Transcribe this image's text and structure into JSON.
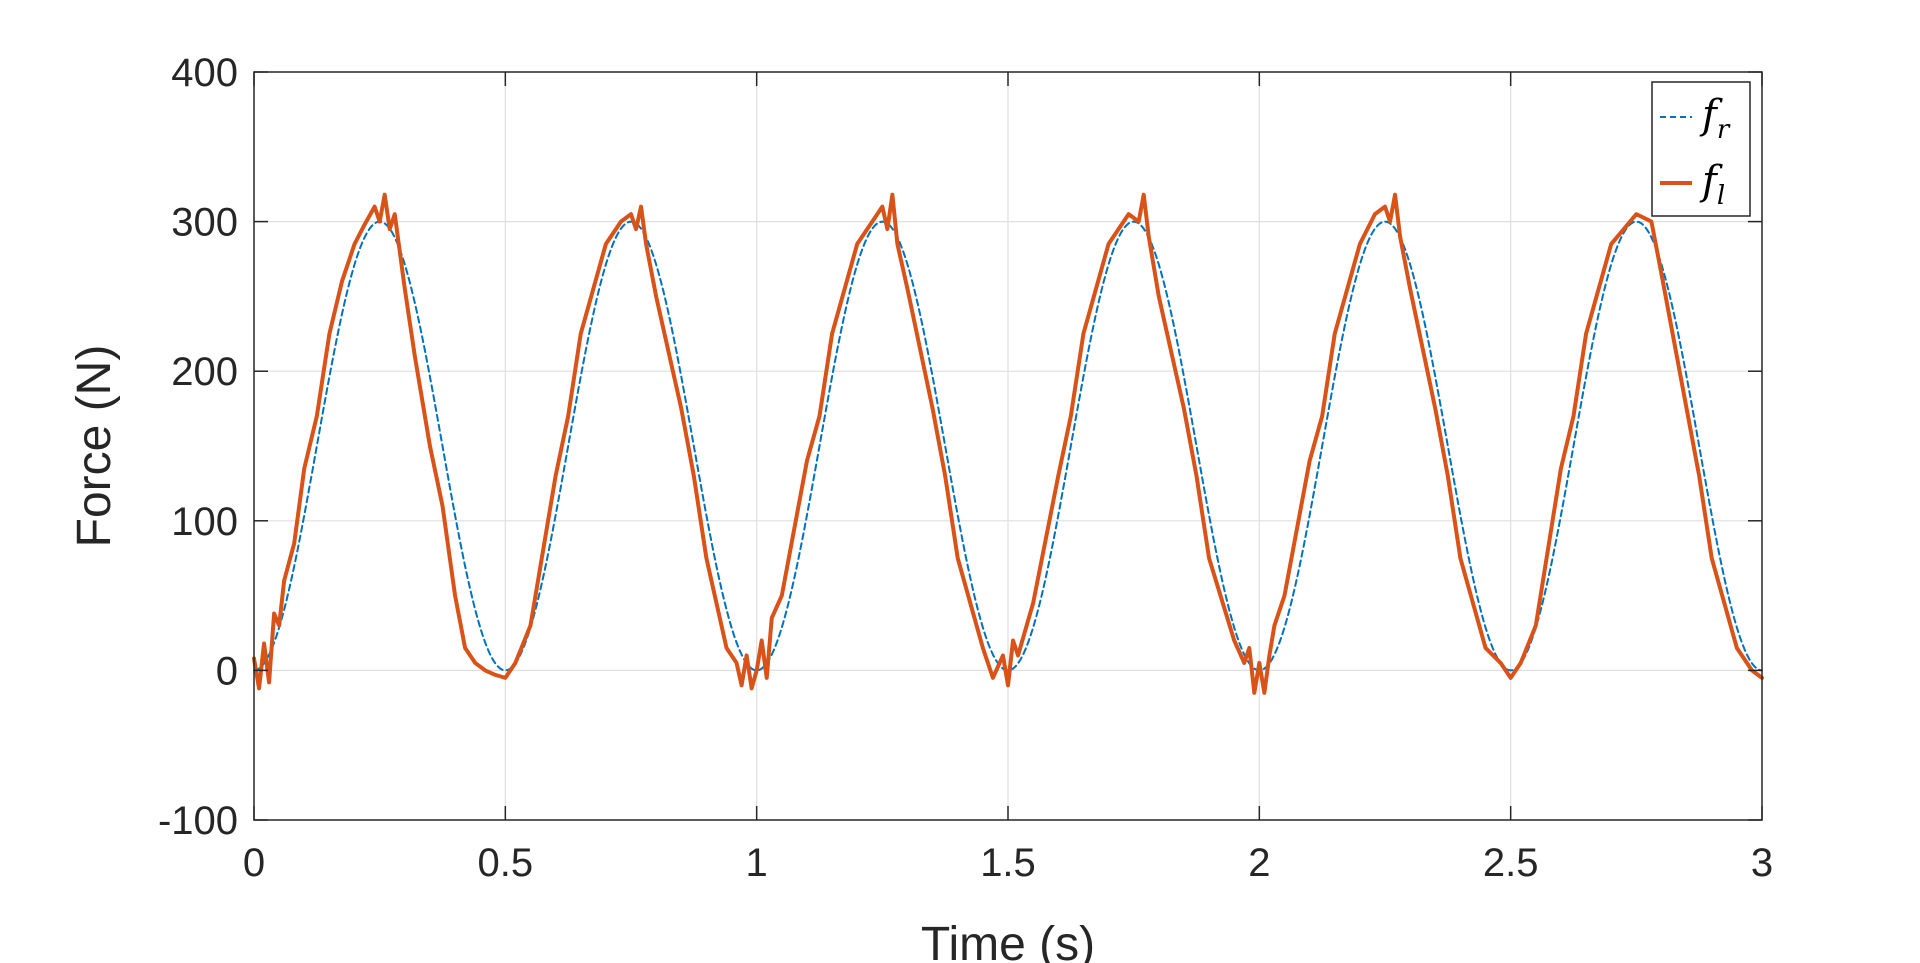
{
  "chart_data": {
    "type": "line",
    "xlabel": "Time (s)",
    "ylabel": "Force (N)",
    "xlim": [
      0,
      3
    ],
    "ylim": [
      -100,
      400
    ],
    "xticks": [
      0,
      0.5,
      1,
      1.5,
      2,
      2.5,
      3
    ],
    "xtick_labels": [
      "0",
      "0.5",
      "1",
      "1.5",
      "2",
      "2.5",
      "3"
    ],
    "yticks": [
      -100,
      0,
      100,
      200,
      300,
      400
    ],
    "ytick_labels": [
      "-100",
      "0",
      "100",
      "200",
      "300",
      "400"
    ],
    "grid": true,
    "legend_position": "top-right",
    "series": [
      {
        "name": "f_r",
        "legend_main": "f",
        "legend_sub": "r",
        "color": "#0072BD",
        "style": "dashed",
        "description": "reference sinusoid 150 - 150*cos(4*pi*t)",
        "x": [
          0,
          0.125,
          0.25,
          0.375,
          0.5,
          0.625,
          0.75,
          0.875,
          1.0,
          1.125,
          1.25,
          1.375,
          1.5,
          1.625,
          1.75,
          1.875,
          2.0,
          2.125,
          2.25,
          2.375,
          2.5,
          2.625,
          2.75,
          2.875,
          3.0
        ],
        "y": [
          0,
          150,
          300,
          150,
          0,
          150,
          300,
          150,
          0,
          150,
          300,
          150,
          0,
          150,
          300,
          150,
          0,
          150,
          300,
          150,
          0,
          150,
          300,
          150,
          0
        ]
      },
      {
        "name": "f_l",
        "legend_main": "f",
        "legend_sub": "l",
        "color": "#D95319",
        "style": "solid",
        "x": [
          0,
          0.01,
          0.02,
          0.03,
          0.04,
          0.05,
          0.06,
          0.08,
          0.1,
          0.125,
          0.15,
          0.175,
          0.2,
          0.22,
          0.24,
          0.25,
          0.26,
          0.27,
          0.28,
          0.29,
          0.3,
          0.32,
          0.35,
          0.375,
          0.4,
          0.42,
          0.44,
          0.46,
          0.48,
          0.5,
          0.52,
          0.55,
          0.6,
          0.625,
          0.65,
          0.7,
          0.73,
          0.75,
          0.76,
          0.77,
          0.78,
          0.8,
          0.85,
          0.875,
          0.9,
          0.94,
          0.96,
          0.97,
          0.98,
          0.99,
          1.0,
          1.01,
          1.02,
          1.03,
          1.05,
          1.1,
          1.125,
          1.15,
          1.2,
          1.23,
          1.25,
          1.26,
          1.27,
          1.28,
          1.3,
          1.35,
          1.375,
          1.4,
          1.45,
          1.47,
          1.49,
          1.5,
          1.51,
          1.52,
          1.55,
          1.6,
          1.625,
          1.65,
          1.7,
          1.74,
          1.76,
          1.77,
          1.78,
          1.8,
          1.85,
          1.875,
          1.9,
          1.95,
          1.97,
          1.98,
          1.99,
          2.0,
          2.01,
          2.02,
          2.03,
          2.05,
          2.1,
          2.125,
          2.15,
          2.2,
          2.23,
          2.25,
          2.26,
          2.27,
          2.28,
          2.3,
          2.35,
          2.375,
          2.4,
          2.45,
          2.48,
          2.5,
          2.52,
          2.55,
          2.6,
          2.625,
          2.65,
          2.7,
          2.75,
          2.78,
          2.8,
          2.85,
          2.875,
          2.9,
          2.95,
          2.98,
          3.0
        ],
        "y": [
          8,
          -12,
          18,
          -8,
          38,
          30,
          60,
          85,
          135,
          170,
          225,
          260,
          285,
          298,
          310,
          300,
          318,
          295,
          305,
          280,
          255,
          210,
          150,
          110,
          50,
          15,
          5,
          0,
          -3,
          -5,
          5,
          30,
          130,
          170,
          225,
          285,
          300,
          305,
          295,
          310,
          285,
          250,
          175,
          130,
          75,
          15,
          5,
          -10,
          10,
          -12,
          0,
          20,
          -5,
          35,
          50,
          140,
          170,
          225,
          285,
          300,
          310,
          295,
          318,
          285,
          255,
          175,
          130,
          75,
          15,
          -5,
          10,
          -10,
          20,
          10,
          45,
          130,
          170,
          225,
          285,
          305,
          300,
          318,
          290,
          250,
          175,
          130,
          75,
          20,
          5,
          15,
          -15,
          5,
          -15,
          10,
          30,
          50,
          140,
          170,
          225,
          285,
          305,
          310,
          300,
          318,
          290,
          255,
          175,
          130,
          75,
          15,
          5,
          -5,
          5,
          30,
          135,
          170,
          225,
          285,
          305,
          300,
          265,
          175,
          130,
          75,
          15,
          0,
          -5
        ]
      }
    ]
  }
}
